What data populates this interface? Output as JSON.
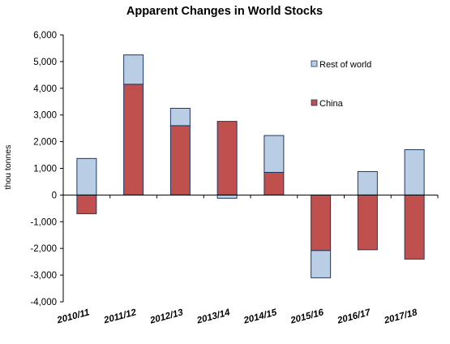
{
  "chart_data": {
    "type": "bar",
    "stacked": true,
    "title": "Apparent Changes in World Stocks",
    "ylabel": "thou tonnes",
    "xlabel": "",
    "ylim": [
      -4000,
      6000
    ],
    "yticks": [
      6000,
      5000,
      4000,
      3000,
      2000,
      1000,
      0,
      -1000,
      -2000,
      -3000,
      -4000
    ],
    "ytick_labels": [
      "6,000",
      "5,000",
      "4,000",
      "3,000",
      "2,000",
      "1,000",
      "0",
      "-1,000",
      "-2,000",
      "-3,000",
      "-4,000"
    ],
    "categories": [
      "2010/11",
      "2011/12",
      "2012/13",
      "2013/14",
      "2014/15",
      "2015/16",
      "2016/17",
      "2017/18"
    ],
    "grid": false,
    "legend_position": "top-right inside plot",
    "series": [
      {
        "name": "China",
        "color": "#c0504d",
        "values": [
          -700,
          4150,
          2600,
          2760,
          850,
          -2080,
          -2050,
          -2400
        ]
      },
      {
        "name": "Rest of world",
        "color": "#b9cde5",
        "values": [
          1370,
          1100,
          650,
          -120,
          1380,
          -1020,
          880,
          1700
        ]
      }
    ],
    "legend": [
      {
        "label": "Rest of world",
        "color": "#b9cde5"
      },
      {
        "label": "China",
        "color": "#c0504d"
      }
    ]
  }
}
